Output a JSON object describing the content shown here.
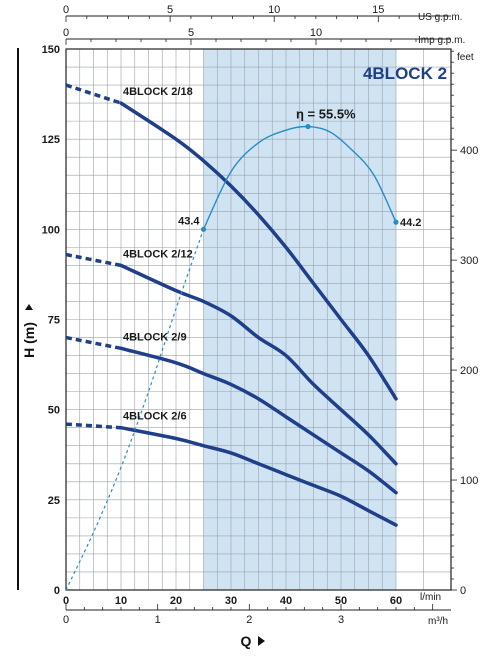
{
  "chart_data": {
    "type": "line",
    "title": "4BLOCK 2",
    "xlabel": "Q",
    "ylabel": "H (m)",
    "xlim": [
      0,
      60
    ],
    "ylim": [
      0,
      150
    ],
    "grid": true,
    "x_unit_label": "l/min",
    "y_ticks": [
      0,
      25,
      50,
      75,
      100,
      125,
      150
    ],
    "x_ticks": [
      0,
      10,
      20,
      30,
      40,
      50,
      60
    ],
    "secondary_axes": {
      "us_gpm": {
        "label": "US g.p.m.",
        "ticks": [
          "0",
          "5",
          "10",
          "15"
        ],
        "values": [
          0,
          5,
          10,
          15
        ],
        "max": 15.85
      },
      "imp_gpm": {
        "label": "Imp g.p.m.",
        "ticks": [
          "0",
          "5",
          "10"
        ],
        "values": [
          0,
          5,
          10
        ],
        "max": 13.2
      },
      "feet": {
        "label": "feet",
        "ticks": [
          "0",
          "100",
          "200",
          "300",
          "400"
        ],
        "values": [
          0,
          100,
          200,
          300,
          400
        ],
        "max": 492
      },
      "m3h": {
        "label": "m³/h",
        "ticks": [
          "0",
          "1",
          "2",
          "3"
        ],
        "values": [
          0,
          1,
          2,
          3
        ],
        "max": 3.6
      }
    },
    "operating_range": {
      "from": 25,
      "to": 60
    },
    "series": [
      {
        "name": "4BLOCK 2/18",
        "dashed_x": [
          0,
          10
        ],
        "dashed_y": [
          140,
          135
        ],
        "x": [
          10,
          20,
          25,
          30,
          35,
          40,
          45,
          50,
          55,
          60
        ],
        "y": [
          135,
          125,
          119,
          112,
          104,
          95,
          85,
          75,
          65,
          53
        ]
      },
      {
        "name": "4BLOCK 2/12",
        "dashed_x": [
          0,
          10
        ],
        "dashed_y": [
          93,
          90
        ],
        "x": [
          10,
          20,
          25,
          30,
          35,
          40,
          45,
          50,
          55,
          60
        ],
        "y": [
          90,
          83,
          80,
          76,
          70,
          65,
          57,
          50,
          43,
          35
        ]
      },
      {
        "name": "4BLOCK 2/9",
        "dashed_x": [
          0,
          10
        ],
        "dashed_y": [
          70,
          67
        ],
        "x": [
          10,
          20,
          25,
          30,
          35,
          40,
          45,
          50,
          55,
          60
        ],
        "y": [
          67,
          63,
          60,
          57,
          53,
          48,
          43,
          38,
          33,
          27
        ]
      },
      {
        "name": "4BLOCK 2/6",
        "dashed_x": [
          0,
          10
        ],
        "dashed_y": [
          46,
          45
        ],
        "x": [
          10,
          20,
          25,
          30,
          35,
          40,
          45,
          50,
          55,
          60
        ],
        "y": [
          45,
          42,
          40,
          38,
          35,
          32,
          29,
          26,
          22,
          18
        ]
      }
    ],
    "efficiency": {
      "name": "η = 55.5%",
      "dashed_x": [
        0,
        5,
        10,
        15,
        20,
        25
      ],
      "dashed_y": [
        0,
        16,
        34,
        55,
        78,
        100
      ],
      "x": [
        25,
        30,
        35,
        40,
        44,
        48,
        52,
        56,
        60
      ],
      "y": [
        100,
        116,
        124,
        127.5,
        128.5,
        127,
        122,
        115,
        102
      ],
      "peak": {
        "x": 44,
        "y": 128.5
      },
      "markers": [
        {
          "x": 25,
          "y": 100,
          "label": "43.4"
        },
        {
          "x": 60,
          "y": 102,
          "label": "44.2"
        }
      ]
    }
  }
}
